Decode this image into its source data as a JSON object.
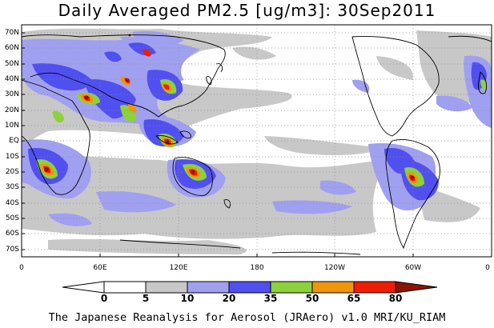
{
  "title": "Daily Averaged PM2.5 [ug/m3]: 30Sep2011",
  "credit": "The Japanese Reanalysis for Aerosol (JRAero) v1.0 MRI/KU_RIAM",
  "latitude_labels": [
    "70N",
    "60N",
    "50N",
    "40N",
    "30N",
    "20N",
    "10N",
    "EQ",
    "10S",
    "20S",
    "30S",
    "40S",
    "50S",
    "60S",
    "70S"
  ],
  "longitude_labels": [
    "0",
    "60E",
    "120E",
    "180",
    "120W",
    "60W",
    "0"
  ],
  "colorbar": {
    "ticks": [
      "0",
      "5",
      "10",
      "20",
      "35",
      "50",
      "65",
      "80"
    ],
    "colors": [
      "#ffffff",
      "#c8c8c8",
      "#a0a0f0",
      "#5050f0",
      "#8cd23c",
      "#f0960a",
      "#f01e00",
      "#8c1400"
    ]
  },
  "map_colors": {
    "grey": "#c8c8c8",
    "light_blue": "#a0a0f0",
    "blue": "#5050f0",
    "green": "#8cd23c",
    "orange": "#f0960a",
    "red": "#f01e00",
    "dark_red": "#8c1400",
    "coastline": "#000000"
  }
}
